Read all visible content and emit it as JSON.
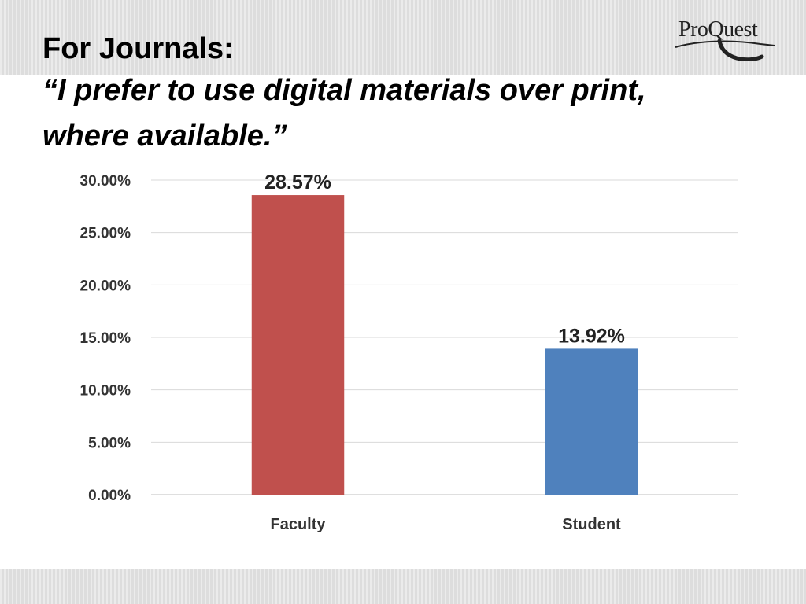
{
  "slide": {
    "title_line1": "For Journals:",
    "title_quote": "“I prefer to use digital materials over print, where available.”"
  },
  "logo": {
    "text": "ProQuest",
    "mark": "."
  },
  "chart_data": {
    "type": "bar",
    "categories": [
      "Faculty",
      "Student"
    ],
    "values": [
      28.57,
      13.92
    ],
    "data_labels": [
      "28.57%",
      "13.92%"
    ],
    "colors": [
      "#c0504d",
      "#4f81bd"
    ],
    "ylim": [
      0,
      30
    ],
    "yticks": [
      0,
      5,
      10,
      15,
      20,
      25,
      30
    ],
    "ytick_labels": [
      "0.00%",
      "5.00%",
      "10.00%",
      "15.00%",
      "20.00%",
      "25.00%",
      "30.00%"
    ],
    "grid": true,
    "legend": "none",
    "title": "",
    "xlabel": "",
    "ylabel": ""
  }
}
